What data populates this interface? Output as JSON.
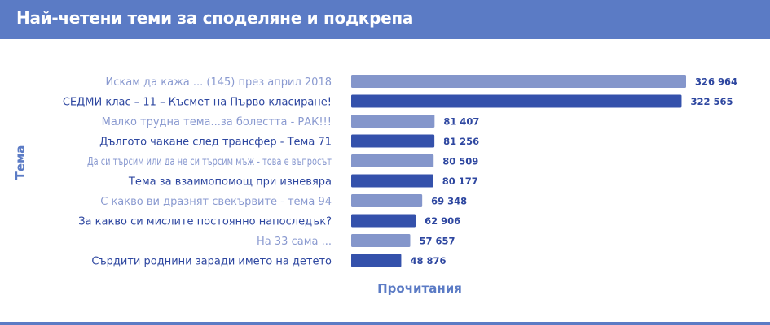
{
  "title": "Най-четени теми за споделяне и подкрепа",
  "chart_data": {
    "type": "bar",
    "orientation": "horizontal",
    "title": "Най-четени теми за споделяне и подкрепа",
    "xlabel": "Прочитания",
    "ylabel": "Тема",
    "categories": [
      "Искам да кажа ... (145) през април 2018",
      "СЕДМИ клас – 11 – Късмет на Първо класиране!",
      "Малко трудна тема...за болестта - РАК!!!",
      "Дългото чакане след трансфер - Тема 71",
      "Да си търсим или да не си търсим мъж - това е въпросът",
      "Тема за взаимопомощ при изневяра",
      "С какво ви дразнят свекървите - тема 94",
      "За какво си мислите постоянно напоследък?",
      "На 33 сама ...",
      "Сърдити роднини заради името на детето"
    ],
    "values": [
      326964,
      322565,
      81407,
      81256,
      80509,
      80177,
      69348,
      62906,
      57657,
      48876
    ],
    "value_labels": [
      "326 964",
      "322 565",
      "81 407",
      "81 256",
      "80 509",
      "80 177",
      "69 348",
      "62 906",
      "57 657",
      "48 876"
    ],
    "xlim": [
      0,
      326964
    ],
    "grid": false,
    "colors": {
      "light": "#8496cb",
      "dark": "#3451ab",
      "label_light": "#8a9ad0",
      "label_dark": "#2e47a0"
    }
  }
}
